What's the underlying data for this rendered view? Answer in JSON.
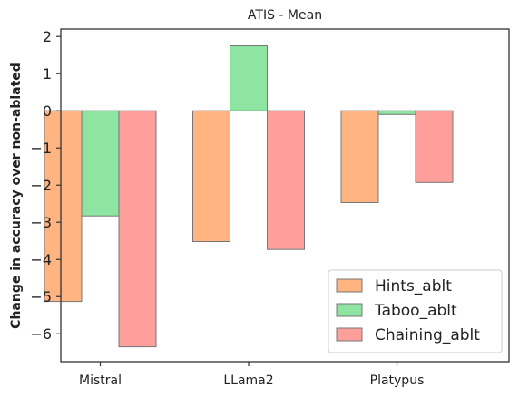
{
  "chart_data": {
    "type": "bar",
    "title": "ATIS - Mean",
    "xlabel": "",
    "ylabel": "Change in accuracy over non-ablated",
    "categories": [
      "Mistral",
      "LLama2",
      "Platypus"
    ],
    "series": [
      {
        "name": "Hints_ablt",
        "values": [
          -5.13,
          -3.52,
          -2.47
        ],
        "color": "#ffb482"
      },
      {
        "name": "Taboo_ablt",
        "values": [
          -2.83,
          1.75,
          -0.1
        ],
        "color": "#8de5a1"
      },
      {
        "name": "Chaining_ablt",
        "values": [
          -6.35,
          -3.73,
          -1.93
        ],
        "color": "#ff9f9b"
      }
    ],
    "ylim": [
      -6.75,
      2.2
    ],
    "yticks": [
      2,
      1,
      0,
      -1,
      -2,
      -3,
      -4,
      -5,
      -6
    ],
    "ytick_labels": [
      "2",
      "1",
      "0",
      "−1",
      "−2",
      "−3",
      "−4",
      "−5",
      "−6"
    ],
    "grid": false,
    "legend_position": "lower-right",
    "edge_color": "#777777"
  }
}
